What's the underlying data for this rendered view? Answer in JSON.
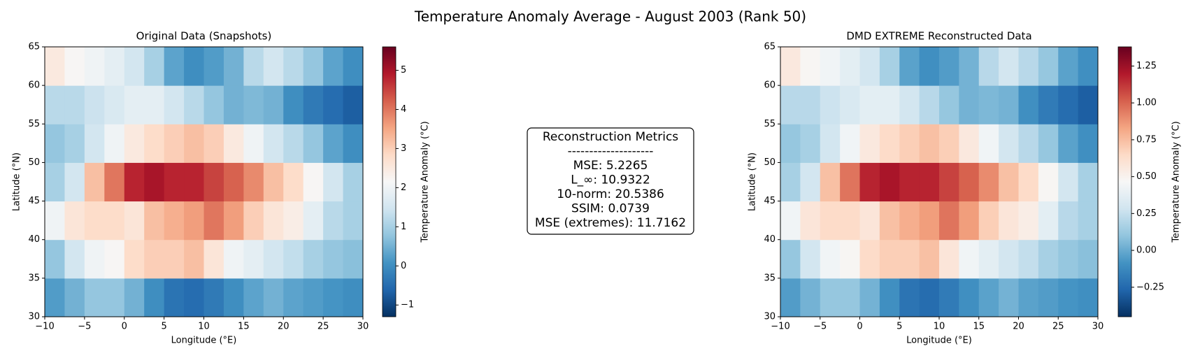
{
  "title": "Temperature Anomaly Average - August 2003 (Rank 50)",
  "chart_data": [
    {
      "type": "heatmap",
      "title": "Original Data (Snapshots)",
      "xlabel": "Longitude (°E)",
      "ylabel": "Latitude (°N)",
      "colorbar_label": "Temperature Anomaly (°C)",
      "colormap": "RdBu_r",
      "xlim": [
        -10,
        30
      ],
      "ylim": [
        30,
        65
      ],
      "xticks": [
        {
          "value": -10,
          "label": "−10"
        },
        {
          "value": -5,
          "label": "−5"
        },
        0,
        5,
        10,
        15,
        20,
        25,
        30
      ],
      "yticks": [
        30,
        35,
        40,
        45,
        50,
        55,
        60,
        65
      ],
      "clim": [
        -1.3,
        5.6
      ],
      "cticks": [
        {
          "value": -1,
          "label": "−1"
        },
        0,
        1,
        2,
        3,
        4,
        5
      ],
      "x": [
        -8.75,
        -6.25,
        -3.75,
        -1.25,
        1.25,
        3.75,
        6.25,
        8.75,
        11.25,
        13.75,
        16.25,
        18.75,
        21.25,
        23.75,
        26.25,
        28.75
      ],
      "y": [
        32.5,
        37.5,
        42.5,
        47.5,
        52.5,
        57.5,
        62.5
      ],
      "values": [
        [
          0.2,
          0.5,
          0.8,
          0.8,
          0.5,
          0,
          -0.4,
          -0.5,
          -0.3,
          0,
          0.3,
          0.5,
          0.3,
          0.2,
          0.1,
          0
        ],
        [
          0.8,
          1.5,
          2,
          2.2,
          2.8,
          3,
          3,
          3.2,
          2.6,
          2,
          1.8,
          1.5,
          1.3,
          1,
          0.8,
          0.7
        ],
        [
          2,
          2.6,
          2.8,
          2.8,
          2.6,
          3.2,
          3.4,
          3.6,
          4,
          3.6,
          3,
          2.6,
          2.4,
          1.8,
          1.2,
          1
        ],
        [
          1,
          1.5,
          3.2,
          4,
          4.8,
          5,
          4.8,
          4.8,
          4.5,
          4.2,
          3.8,
          3.2,
          2.8,
          2.2,
          1.5,
          1
        ],
        [
          0.8,
          1,
          1.5,
          2,
          2.5,
          2.8,
          3,
          3.2,
          3,
          2.5,
          2,
          1.5,
          1.2,
          0.8,
          0.3,
          0
        ],
        [
          1.2,
          1.2,
          1.4,
          1.6,
          1.8,
          1.8,
          1.5,
          1.2,
          0.8,
          0.5,
          0.6,
          0.5,
          0,
          -0.3,
          -0.5,
          -0.7
        ],
        [
          2.5,
          2.2,
          2,
          1.8,
          1.5,
          1,
          0.3,
          0,
          0.2,
          0.5,
          1.2,
          1.5,
          1.2,
          0.8,
          0.3,
          0
        ]
      ]
    },
    {
      "type": "heatmap",
      "title": "DMD EXTREME Reconstructed Data",
      "xlabel": "Longitude (°E)",
      "ylabel": "Latitude (°N)",
      "colorbar_label": "Temperature Anomaly (°C)",
      "colormap": "RdBu_r",
      "xlim": [
        -10,
        30
      ],
      "ylim": [
        30,
        65
      ],
      "xticks": [
        {
          "value": -10,
          "label": "−10"
        },
        {
          "value": -5,
          "label": "−5"
        },
        0,
        5,
        10,
        15,
        20,
        25,
        30
      ],
      "yticks": [
        30,
        35,
        40,
        45,
        50,
        55,
        60,
        65
      ],
      "clim": [
        -0.45,
        1.38
      ],
      "cticks": [
        {
          "value": -0.25,
          "label": "−0.25"
        },
        {
          "value": 0,
          "label": "0.00"
        },
        0.25,
        {
          "value": 0.5,
          "label": "0.50"
        },
        0.75,
        {
          "value": 1,
          "label": "1.00"
        },
        1.25
      ],
      "x": [
        -8.75,
        -6.25,
        -3.75,
        -1.25,
        1.25,
        3.75,
        6.25,
        8.75,
        11.25,
        13.75,
        16.25,
        18.75,
        21.25,
        23.75,
        26.25,
        28.75
      ],
      "y": [
        32.5,
        37.5,
        42.5,
        47.5,
        52.5,
        57.5,
        62.5
      ],
      "values": [
        [
          -0.05,
          0.03,
          0.11,
          0.11,
          0.03,
          -0.1,
          -0.21,
          -0.24,
          -0.18,
          -0.1,
          -0.03,
          0.03,
          -0.03,
          -0.05,
          -0.08,
          -0.1
        ],
        [
          0.11,
          0.29,
          0.43,
          0.48,
          0.64,
          0.69,
          0.69,
          0.74,
          0.58,
          0.43,
          0.37,
          0.29,
          0.24,
          0.16,
          0.11,
          0.08
        ],
        [
          0.43,
          0.58,
          0.64,
          0.64,
          0.58,
          0.74,
          0.8,
          0.85,
          0.96,
          0.85,
          0.69,
          0.58,
          0.53,
          0.37,
          0.21,
          0.16
        ],
        [
          0.16,
          0.29,
          0.74,
          0.96,
          1.17,
          1.22,
          1.17,
          1.17,
          1.09,
          1.01,
          0.9,
          0.74,
          0.64,
          0.48,
          0.29,
          0.16
        ],
        [
          0.11,
          0.16,
          0.29,
          0.43,
          0.56,
          0.64,
          0.69,
          0.74,
          0.69,
          0.56,
          0.43,
          0.29,
          0.21,
          0.11,
          -0.03,
          -0.1
        ],
        [
          0.21,
          0.21,
          0.27,
          0.32,
          0.37,
          0.37,
          0.29,
          0.21,
          0.11,
          0.03,
          0.05,
          0.03,
          -0.1,
          -0.18,
          -0.24,
          -0.29
        ],
        [
          0.56,
          0.48,
          0.43,
          0.37,
          0.29,
          0.16,
          -0.03,
          -0.1,
          -0.05,
          0.03,
          0.21,
          0.29,
          0.21,
          0.11,
          -0.03,
          -0.1
        ]
      ]
    }
  ],
  "metrics": {
    "lines": [
      "Reconstruction Metrics",
      "--------------------",
      "MSE: 5.2265",
      "L_∞: 10.9322",
      "10-norm: 20.5386",
      "SSIM: 0.0739",
      "MSE (extremes): 11.7162"
    ]
  }
}
